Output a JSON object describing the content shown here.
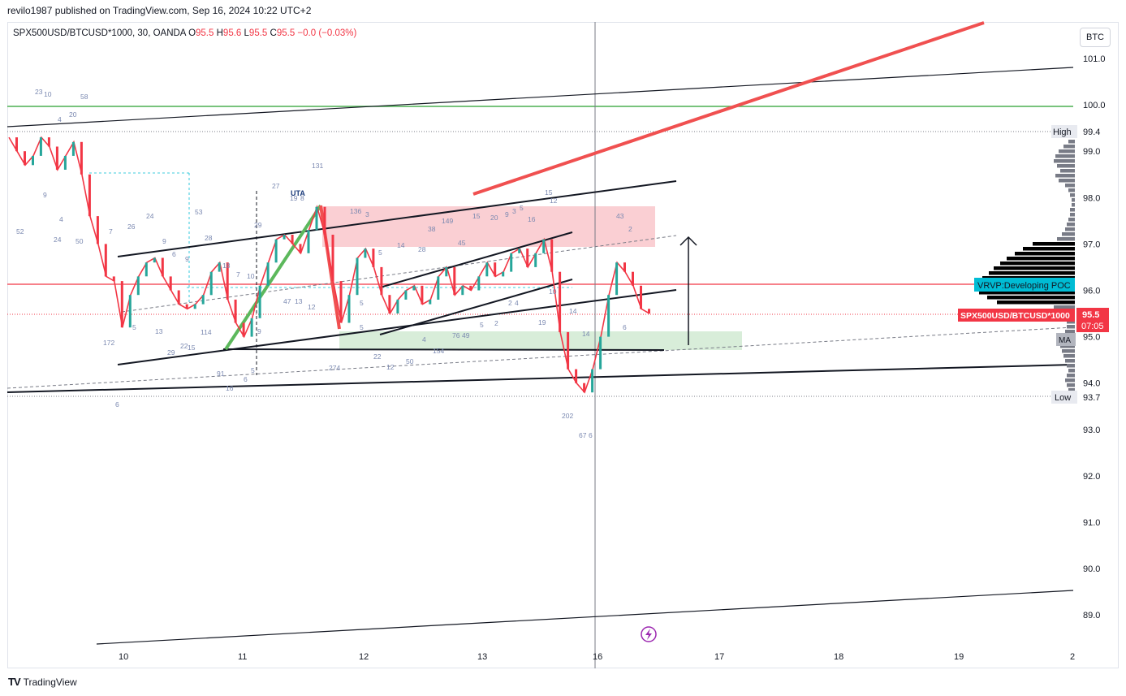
{
  "header": {
    "published": "revilo1987 published on TradingView.com, Sep 16, 2024 10:22 UTC+2",
    "symbol": "SPX500USD/BTCUSD*1000, 30, OANDA",
    "o_label": "O",
    "o_value": "95.5",
    "h_label": "H",
    "h_value": "95.6",
    "l_label": "L",
    "l_value": "95.5",
    "c_label": "C",
    "c_value": "95.5",
    "change": "−0.0 (−0.03%)"
  },
  "currency_badge": "BTC",
  "footer": {
    "logo": "TV",
    "brand": "TradingView"
  },
  "colors": {
    "up": "#26a69a",
    "down": "#f23645",
    "green_line": "#4caf50",
    "red_line": "#f23645",
    "red_zone": "#f8bbc0",
    "green_zone": "#c8e6c9",
    "badge_blue": "#00bcd4"
  },
  "chart_data": {
    "type": "line",
    "title": "",
    "x_ticks": [
      "10",
      "11",
      "12",
      "13",
      "16",
      "17",
      "18",
      "19",
      "2"
    ],
    "y_ticks": [
      "101.0",
      "100.0",
      "99.0",
      "98.0",
      "97.0",
      "96.0",
      "95.0",
      "94.0",
      "93.0",
      "92.0",
      "91.0",
      "90.0",
      "89.0"
    ],
    "ylim": [
      88.4,
      101.7
    ],
    "high": {
      "label": "High",
      "value": "99.4"
    },
    "low": {
      "label": "Low",
      "value": "93.7"
    },
    "last": {
      "label": "SPX500USD/BTCUSD*1000",
      "value": "95.5",
      "countdown": "07:05"
    },
    "poc": {
      "label": "VRVP:Developing POC",
      "value": 96.15
    },
    "ma_label": "MA",
    "annotation_uta": "UTA",
    "series": [
      {
        "values": [
          99.3,
          99.0,
          98.7,
          98.9,
          99.3,
          99.1,
          98.6,
          98.9,
          99.2,
          98.5,
          97.6,
          97.0,
          96.3,
          96.2,
          95.2,
          95.9,
          96.3,
          96.6,
          96.7,
          96.3,
          96.0,
          95.7,
          95.6,
          95.7,
          95.9,
          96.4,
          96.6,
          95.8,
          95.3,
          95.0,
          95.4,
          96.1,
          96.6,
          97.1,
          97.2,
          97.0,
          96.8,
          97.3,
          97.8,
          97.2,
          96.2,
          95.3,
          95.9,
          96.7,
          96.9,
          96.5,
          95.9,
          95.5,
          95.8,
          96.0,
          96.1,
          95.7,
          95.8,
          96.3,
          96.5,
          95.9,
          96.1,
          96.0,
          96.3,
          96.6,
          96.3,
          96.4,
          96.8,
          96.9,
          96.5,
          96.8,
          97.1,
          96.4,
          95.1,
          94.3,
          94.0,
          93.8,
          94.3,
          95.0,
          95.9,
          96.6,
          96.4,
          96.1,
          95.6,
          95.5
        ]
      }
    ],
    "volume_labels": [
      {
        "t": "23",
        "x": 43,
        "y": 116
      },
      {
        "t": "10",
        "x": 54,
        "y": 119
      },
      {
        "t": "58",
        "x": 99,
        "y": 122
      },
      {
        "t": "4",
        "x": 71,
        "y": 150
      },
      {
        "t": "20",
        "x": 85,
        "y": 144
      },
      {
        "t": "9",
        "x": 53,
        "y": 243
      },
      {
        "t": "4",
        "x": 73,
        "y": 273
      },
      {
        "t": "52",
        "x": 20,
        "y": 288
      },
      {
        "t": "24",
        "x": 66,
        "y": 298
      },
      {
        "t": "50",
        "x": 93,
        "y": 300
      },
      {
        "t": "7",
        "x": 134,
        "y": 288
      },
      {
        "t": "26",
        "x": 157,
        "y": 282
      },
      {
        "t": "24",
        "x": 180,
        "y": 269
      },
      {
        "t": "9",
        "x": 200,
        "y": 300
      },
      {
        "t": "6",
        "x": 212,
        "y": 316
      },
      {
        "t": "9",
        "x": 228,
        "y": 322
      },
      {
        "t": "53",
        "x": 240,
        "y": 264
      },
      {
        "t": "28",
        "x": 252,
        "y": 296
      },
      {
        "t": "18",
        "x": 274,
        "y": 330
      },
      {
        "t": "7",
        "x": 291,
        "y": 341
      },
      {
        "t": "10",
        "x": 304,
        "y": 343
      },
      {
        "t": "29",
        "x": 313,
        "y": 280
      },
      {
        "t": "27",
        "x": 335,
        "y": 232
      },
      {
        "t": "19",
        "x": 357,
        "y": 247
      },
      {
        "t": "8",
        "x": 370,
        "y": 247
      },
      {
        "t": "131",
        "x": 384,
        "y": 207
      },
      {
        "t": "136",
        "x": 431,
        "y": 263
      },
      {
        "t": "3",
        "x": 450,
        "y": 267
      },
      {
        "t": "5",
        "x": 466,
        "y": 314
      },
      {
        "t": "14",
        "x": 489,
        "y": 305
      },
      {
        "t": "28",
        "x": 515,
        "y": 310
      },
      {
        "t": "38",
        "x": 527,
        "y": 285
      },
      {
        "t": "149",
        "x": 544,
        "y": 275
      },
      {
        "t": "45",
        "x": 564,
        "y": 302
      },
      {
        "t": "15",
        "x": 582,
        "y": 269
      },
      {
        "t": "20",
        "x": 604,
        "y": 271
      },
      {
        "t": "9",
        "x": 622,
        "y": 267
      },
      {
        "t": "3",
        "x": 631,
        "y": 263
      },
      {
        "t": "5",
        "x": 640,
        "y": 259
      },
      {
        "t": "16",
        "x": 650,
        "y": 273
      },
      {
        "t": "15",
        "x": 671,
        "y": 240
      },
      {
        "t": "12",
        "x": 677,
        "y": 250
      },
      {
        "t": "43",
        "x": 759,
        "y": 269
      },
      {
        "t": "2",
        "x": 774,
        "y": 285
      },
      {
        "t": "172",
        "x": 127,
        "y": 425
      },
      {
        "t": "5",
        "x": 163,
        "y": 406
      },
      {
        "t": "13",
        "x": 191,
        "y": 411
      },
      {
        "t": "114",
        "x": 247,
        "y": 412
      },
      {
        "t": "22",
        "x": 222,
        "y": 429
      },
      {
        "t": "15",
        "x": 231,
        "y": 431
      },
      {
        "t": "29",
        "x": 206,
        "y": 437
      },
      {
        "t": "47",
        "x": 349,
        "y": 374
      },
      {
        "t": "13",
        "x": 363,
        "y": 374
      },
      {
        "t": "12",
        "x": 379,
        "y": 381
      },
      {
        "t": "9",
        "x": 317,
        "y": 411
      },
      {
        "t": "5",
        "x": 443,
        "y": 376
      },
      {
        "t": "5",
        "x": 443,
        "y": 406
      },
      {
        "t": "22",
        "x": 460,
        "y": 442
      },
      {
        "t": "50",
        "x": 500,
        "y": 448
      },
      {
        "t": "12",
        "x": 476,
        "y": 455
      },
      {
        "t": "4",
        "x": 520,
        "y": 421
      },
      {
        "t": "76",
        "x": 557,
        "y": 416
      },
      {
        "t": "49",
        "x": 569,
        "y": 416
      },
      {
        "t": "154",
        "x": 533,
        "y": 435
      },
      {
        "t": "5",
        "x": 591,
        "y": 403
      },
      {
        "t": "2",
        "x": 609,
        "y": 401
      },
      {
        "t": "19",
        "x": 663,
        "y": 400
      },
      {
        "t": "2",
        "x": 626,
        "y": 376
      },
      {
        "t": "4",
        "x": 634,
        "y": 376
      },
      {
        "t": "14",
        "x": 701,
        "y": 386
      },
      {
        "t": "14",
        "x": 717,
        "y": 414
      },
      {
        "t": "6",
        "x": 767,
        "y": 406
      },
      {
        "t": "10",
        "x": 676,
        "y": 362
      },
      {
        "t": "91",
        "x": 267,
        "y": 463
      },
      {
        "t": "6",
        "x": 300,
        "y": 470
      },
      {
        "t": "5",
        "x": 309,
        "y": 459
      },
      {
        "t": "16",
        "x": 278,
        "y": 481
      },
      {
        "t": "274",
        "x": 405,
        "y": 456
      },
      {
        "t": "6",
        "x": 142,
        "y": 501
      },
      {
        "t": "202",
        "x": 692,
        "y": 515
      },
      {
        "t": "67",
        "x": 713,
        "y": 539
      },
      {
        "t": "6",
        "x": 725,
        "y": 539
      }
    ]
  }
}
